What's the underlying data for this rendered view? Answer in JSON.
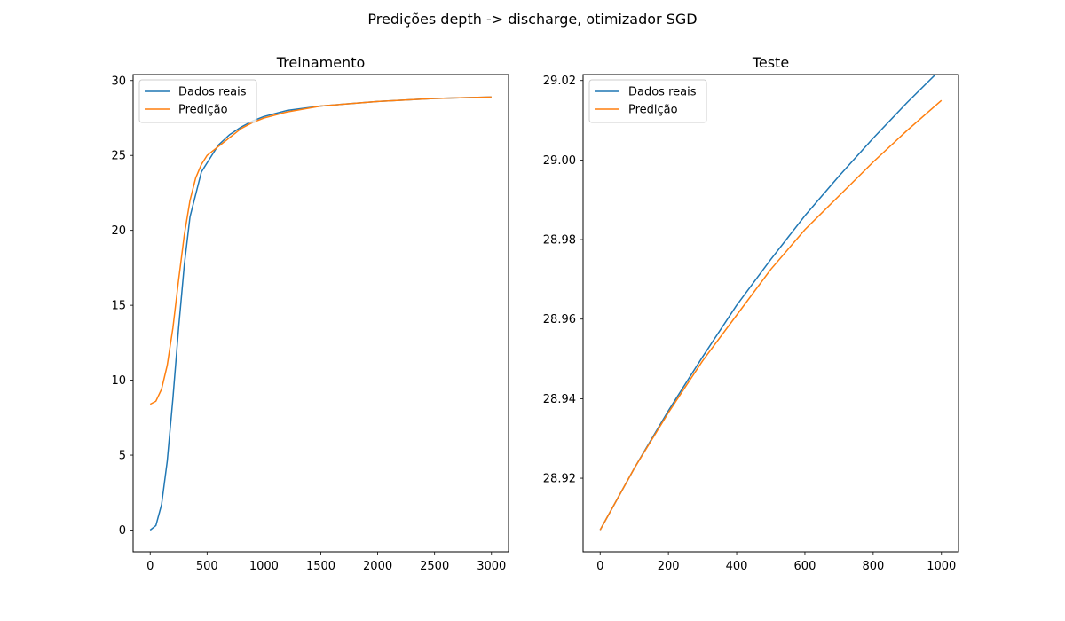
{
  "figure": {
    "suptitle": "Predições depth -> discharge, otimizador SGD"
  },
  "chart_data": [
    {
      "type": "line",
      "title": "Treinamento",
      "xlabel": "",
      "ylabel": "",
      "xlim": [
        -150,
        3150
      ],
      "ylim": [
        -1.45,
        30.4
      ],
      "xticks": [
        0,
        500,
        1000,
        1500,
        2000,
        2500,
        3000
      ],
      "yticks": [
        0,
        5,
        10,
        15,
        20,
        25,
        30
      ],
      "xtick_labels": [
        "0",
        "500",
        "1000",
        "1500",
        "2000",
        "2500",
        "3000"
      ],
      "ytick_labels": [
        "0",
        "5",
        "10",
        "15",
        "20",
        "25",
        "30"
      ],
      "grid": false,
      "legend": "top-left",
      "series": [
        {
          "name": "Dados reais",
          "color": "#1f77b4",
          "x": [
            0,
            50,
            100,
            150,
            200,
            250,
            300,
            350,
            400,
            450,
            500,
            600,
            700,
            800,
            900,
            1000,
            1200,
            1500,
            2000,
            2500,
            3000
          ],
          "y": [
            0,
            0.3,
            1.7,
            4.6,
            8.8,
            13.5,
            17.7,
            20.9,
            22.4,
            23.9,
            24.5,
            25.7,
            26.4,
            26.9,
            27.3,
            27.6,
            28.0,
            28.3,
            28.6,
            28.8,
            28.9
          ]
        },
        {
          "name": "Predição",
          "color": "#ff7f0e",
          "x": [
            0,
            50,
            100,
            150,
            200,
            250,
            300,
            350,
            400,
            450,
            500,
            600,
            700,
            800,
            900,
            1000,
            1200,
            1500,
            2000,
            2500,
            3000
          ],
          "y": [
            8.4,
            8.6,
            9.4,
            11.0,
            13.5,
            16.7,
            19.7,
            22.0,
            23.5,
            24.4,
            25.0,
            25.6,
            26.2,
            26.8,
            27.2,
            27.5,
            27.9,
            28.3,
            28.6,
            28.8,
            28.9
          ]
        }
      ]
    },
    {
      "type": "line",
      "title": "Teste",
      "xlabel": "",
      "ylabel": "",
      "xlim": [
        -50,
        1050
      ],
      "ylim": [
        28.9015,
        29.0215
      ],
      "xticks": [
        0,
        200,
        400,
        600,
        800,
        1000
      ],
      "yticks": [
        28.92,
        28.94,
        28.96,
        28.98,
        29.0,
        29.02
      ],
      "xtick_labels": [
        "0",
        "200",
        "400",
        "600",
        "800",
        "1000"
      ],
      "ytick_labels": [
        "28.92",
        "28.94",
        "28.96",
        "28.98",
        "29.00",
        "29.02"
      ],
      "grid": false,
      "legend": "top-left",
      "series": [
        {
          "name": "Dados reais",
          "color": "#1f77b4",
          "x": [
            0,
            100,
            200,
            300,
            400,
            500,
            600,
            700,
            800,
            900,
            1000
          ],
          "y": [
            28.907,
            28.9225,
            28.937,
            28.9505,
            28.9635,
            28.975,
            28.986,
            28.996,
            29.0055,
            29.0145,
            29.023
          ]
        },
        {
          "name": "Predição",
          "color": "#ff7f0e",
          "x": [
            0,
            100,
            200,
            300,
            400,
            500,
            600,
            700,
            800,
            900,
            1000
          ],
          "y": [
            28.907,
            28.9225,
            28.9365,
            28.9495,
            28.961,
            28.9725,
            28.9825,
            28.991,
            28.9995,
            29.0075,
            29.015
          ]
        }
      ]
    }
  ]
}
